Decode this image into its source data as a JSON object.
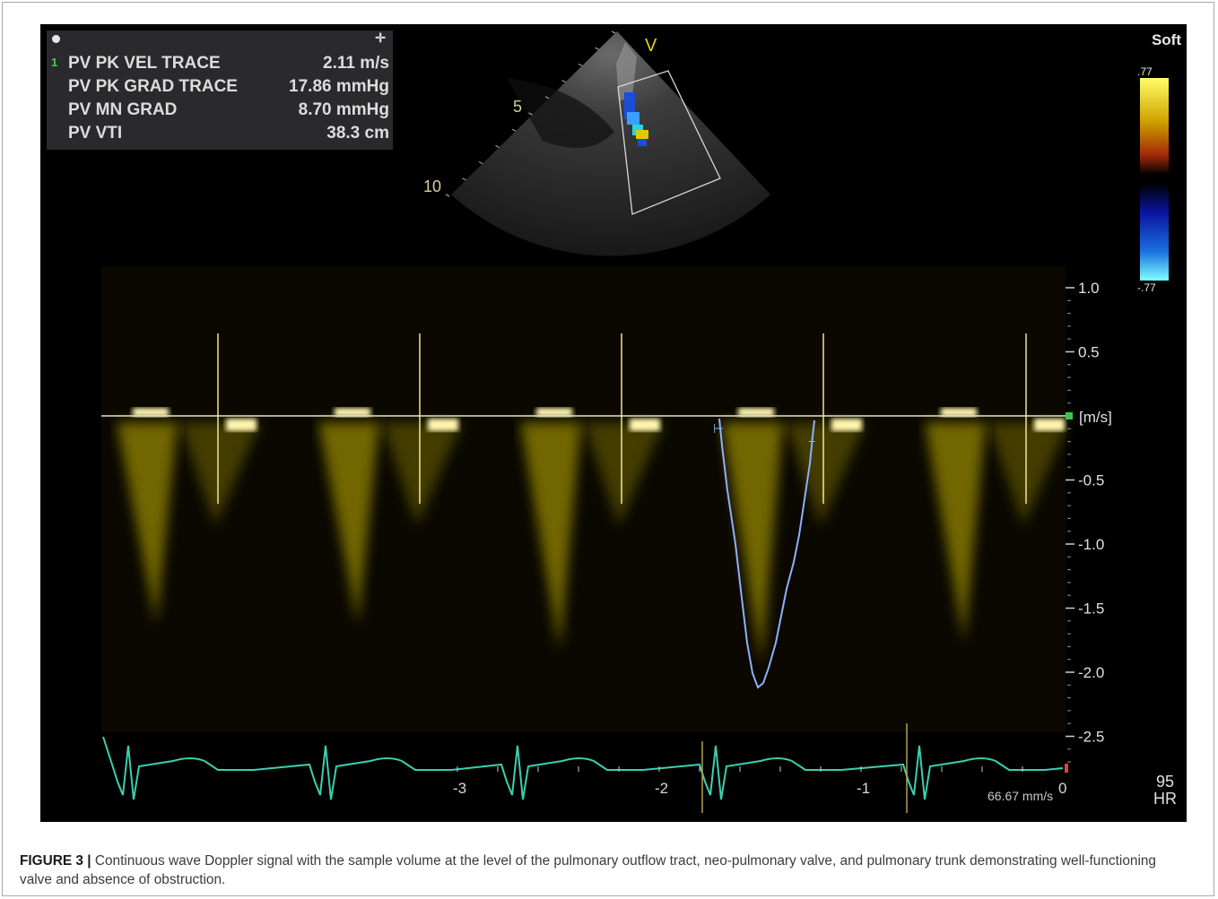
{
  "measurements": [
    {
      "label": "PV PK VEL TRACE",
      "value": "2.11 m/s"
    },
    {
      "label": "PV PK GRAD TRACE",
      "value": "17.86 mmHg"
    },
    {
      "label": "PV MN GRAD",
      "value": "8.70 mmHg"
    },
    {
      "label": "PV VTI",
      "value": "38.3 cm"
    }
  ],
  "measurement_index": "1",
  "sector": {
    "marker": "V",
    "depth_labels": [
      "5",
      "10"
    ]
  },
  "color_map": {
    "preset": "Soft",
    "top_value": ".77",
    "bottom_value": "-.77"
  },
  "velocity_scale": {
    "unit": "[m/s]",
    "ticks": [
      "1.0",
      "0.5",
      "-0.5",
      "-1.0",
      "-1.5",
      "-2.0",
      "-2.5"
    ]
  },
  "time_axis": {
    "ticks": [
      "-3",
      "-2",
      "-1",
      "0"
    ],
    "sweep": "66.67 mm/s"
  },
  "heart_rate": {
    "value": "95",
    "label": "HR"
  },
  "caption": {
    "figure_label": "FIGURE 3 |",
    "text": " Continuous wave Doppler signal with the sample volume at the level of the pulmonary outflow tract, neo-pulmonary valve, and pulmonary trunk demonstrating well-functioning valve and absence of obstruction."
  },
  "colors": {
    "doppler": "#d9c400",
    "trace": "#8fb0ff",
    "ecg": "#3ad0b0"
  }
}
